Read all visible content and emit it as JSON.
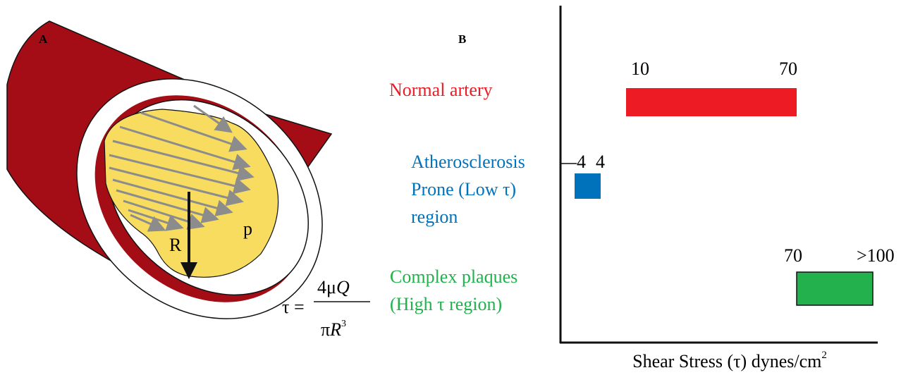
{
  "panel_a": {
    "label": "A",
    "symbol_p": "p",
    "symbol_R": "R",
    "formula": {
      "lhs": "τ =",
      "numerator_coef": "4μ",
      "numerator_var": "Q",
      "denominator_coef": "π",
      "denominator_var": "R",
      "denominator_exp": "3"
    }
  },
  "panel_b": {
    "label": "B",
    "rows": [
      {
        "label_lines": [
          "Normal artery"
        ],
        "range_labels": [
          "10",
          "70"
        ]
      },
      {
        "label_lines": [
          "Atherosclerosis",
          "Prone (Low τ)",
          "region"
        ],
        "range_labels": [
          "4",
          "4"
        ]
      },
      {
        "label_lines": [
          "Complex plaques",
          "(High τ region)"
        ],
        "range_labels": [
          "70",
          ">100"
        ]
      }
    ],
    "axis_label": "Shear Stress (τ) dynes/cm",
    "axis_label_sup": "2"
  }
}
